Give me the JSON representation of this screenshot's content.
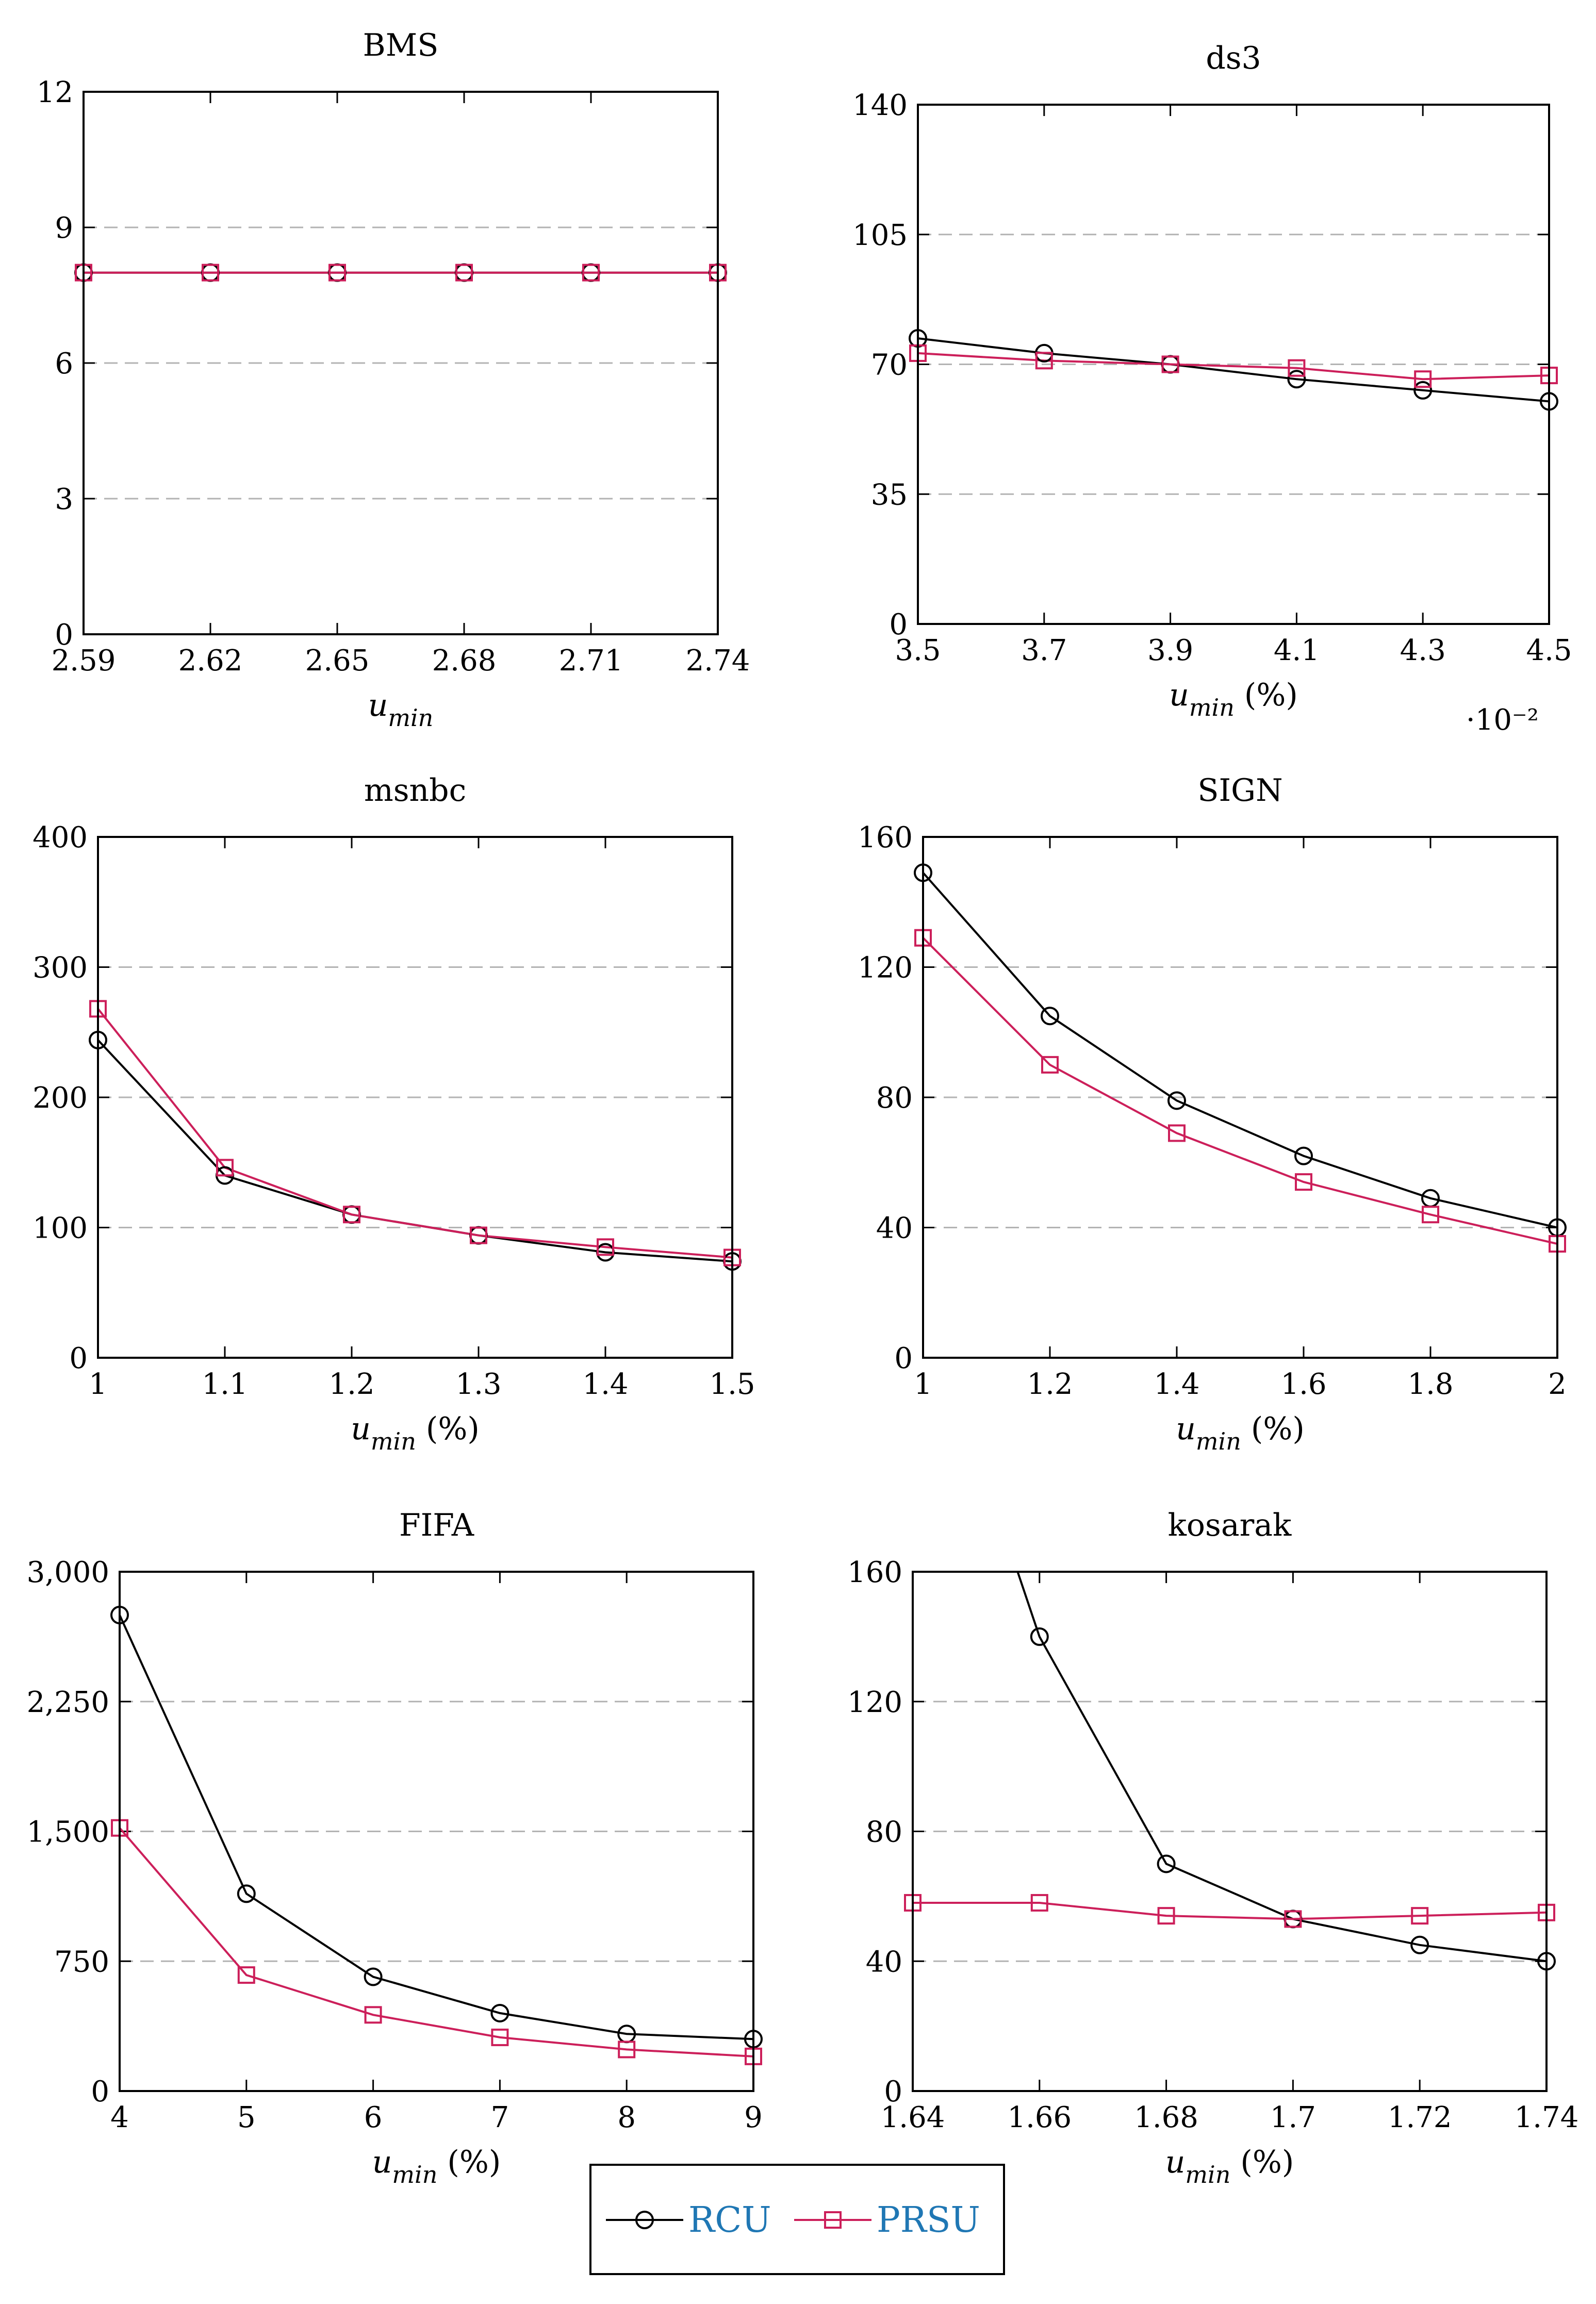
{
  "colors": {
    "rcu": "#000000",
    "prsu": "#cc1f5a",
    "grid": "#b3b3b3",
    "legend_text": "#1f77b4"
  },
  "legend": {
    "rcu": "RCU",
    "prsu": "PRSU"
  },
  "chart_data": [
    {
      "type": "line",
      "title": "BMS",
      "xlabel_var": "u",
      "xlabel_sub": "min",
      "xlabel_suffix": "",
      "x": [
        2.59,
        2.62,
        2.65,
        2.68,
        2.71,
        2.74
      ],
      "xticks": [
        "2.59",
        "2.62",
        "2.65",
        "2.68",
        "2.71",
        "2.74"
      ],
      "xlim": [
        2.59,
        2.74
      ],
      "ylim": [
        0,
        12
      ],
      "yticks": [
        0,
        3,
        6,
        9,
        12
      ],
      "ytick_labels": [
        "0",
        "3",
        "6",
        "9",
        "12"
      ],
      "grid_y": [
        3,
        6,
        9
      ],
      "scale_note": "",
      "series": [
        {
          "name": "RCU",
          "values": [
            8,
            8,
            8,
            8,
            8,
            8
          ]
        },
        {
          "name": "PRSU",
          "values": [
            8,
            8,
            8,
            8,
            8,
            8
          ]
        }
      ]
    },
    {
      "type": "line",
      "title": "ds3",
      "xlabel_var": "u",
      "xlabel_sub": "min",
      "xlabel_suffix": " (%)",
      "x": [
        3.5,
        3.7,
        3.9,
        4.1,
        4.3,
        4.5
      ],
      "xticks": [
        "3.5",
        "3.7",
        "3.9",
        "4.1",
        "4.3",
        "4.5"
      ],
      "xlim": [
        3.5,
        4.5
      ],
      "ylim": [
        0,
        140
      ],
      "yticks": [
        0,
        35,
        70,
        105,
        140
      ],
      "ytick_labels": [
        "0",
        "35",
        "70",
        "105",
        "140"
      ],
      "grid_y": [
        35,
        70,
        105
      ],
      "scale_note": "·10⁻²",
      "series": [
        {
          "name": "RCU",
          "values": [
            77,
            73,
            70,
            66,
            63,
            60
          ]
        },
        {
          "name": "PRSU",
          "values": [
            73,
            71,
            70,
            69,
            66,
            67
          ]
        }
      ]
    },
    {
      "type": "line",
      "title": "msnbc",
      "xlabel_var": "u",
      "xlabel_sub": "min",
      "xlabel_suffix": " (%)",
      "x": [
        1,
        1.1,
        1.2,
        1.3,
        1.4,
        1.5
      ],
      "xticks": [
        "1",
        "1.1",
        "1.2",
        "1.3",
        "1.4",
        "1.5"
      ],
      "xlim": [
        1,
        1.5
      ],
      "ylim": [
        0,
        400
      ],
      "yticks": [
        0,
        100,
        200,
        300,
        400
      ],
      "ytick_labels": [
        "0",
        "100",
        "200",
        "300",
        "400"
      ],
      "grid_y": [
        100,
        200,
        300
      ],
      "scale_note": "",
      "series": [
        {
          "name": "RCU",
          "values": [
            244,
            140,
            110,
            94,
            81,
            74
          ]
        },
        {
          "name": "PRSU",
          "values": [
            268,
            146,
            110,
            94,
            85,
            77
          ]
        }
      ]
    },
    {
      "type": "line",
      "title": "SIGN",
      "xlabel_var": "u",
      "xlabel_sub": "min",
      "xlabel_suffix": " (%)",
      "x": [
        1,
        1.2,
        1.4,
        1.6,
        1.8,
        2
      ],
      "xticks": [
        "1",
        "1.2",
        "1.4",
        "1.6",
        "1.8",
        "2"
      ],
      "xlim": [
        1,
        2
      ],
      "ylim": [
        0,
        160
      ],
      "yticks": [
        0,
        40,
        80,
        120,
        160
      ],
      "ytick_labels": [
        "0",
        "40",
        "80",
        "120",
        "160"
      ],
      "grid_y": [
        40,
        80,
        120
      ],
      "scale_note": "",
      "series": [
        {
          "name": "RCU",
          "values": [
            149,
            105,
            79,
            62,
            49,
            40
          ]
        },
        {
          "name": "PRSU",
          "values": [
            129,
            90,
            69,
            54,
            44,
            35
          ]
        }
      ]
    },
    {
      "type": "line",
      "title": "FIFA",
      "xlabel_var": "u",
      "xlabel_sub": "min",
      "xlabel_suffix": " (%)",
      "x": [
        4,
        5,
        6,
        7,
        8,
        9
      ],
      "xticks": [
        "4",
        "5",
        "6",
        "7",
        "8",
        "9"
      ],
      "xlim": [
        4,
        9
      ],
      "ylim": [
        0,
        3000
      ],
      "yticks": [
        0,
        750,
        1500,
        2250,
        3000
      ],
      "ytick_labels": [
        "0",
        "750",
        "1,500",
        "2,250",
        "3,000"
      ],
      "grid_y": [
        750,
        1500,
        2250
      ],
      "scale_note": "",
      "series": [
        {
          "name": "RCU",
          "values": [
            2750,
            1140,
            660,
            450,
            330,
            300
          ]
        },
        {
          "name": "PRSU",
          "values": [
            1520,
            670,
            440,
            310,
            240,
            200
          ]
        }
      ]
    },
    {
      "type": "line",
      "title": "kosarak",
      "xlabel_var": "u",
      "xlabel_sub": "min",
      "xlabel_suffix": " (%)",
      "x": [
        1.64,
        1.66,
        1.68,
        1.7,
        1.72,
        1.74
      ],
      "xticks": [
        "1.64",
        "1.66",
        "1.68",
        "1.7",
        "1.72",
        "1.74"
      ],
      "xlim": [
        1.64,
        1.74
      ],
      "ylim": [
        0,
        160
      ],
      "yticks": [
        0,
        40,
        80,
        120,
        160
      ],
      "ytick_labels": [
        "0",
        "40",
        "80",
        "120",
        "160"
      ],
      "grid_y": [
        40,
        80,
        120
      ],
      "scale_note": "",
      "series": [
        {
          "name": "RCU",
          "values": [
            null,
            140,
            70,
            53,
            45,
            40
          ]
        },
        {
          "name": "PRSU",
          "values": [
            58,
            58,
            54,
            53,
            54,
            55
          ]
        }
      ]
    }
  ]
}
